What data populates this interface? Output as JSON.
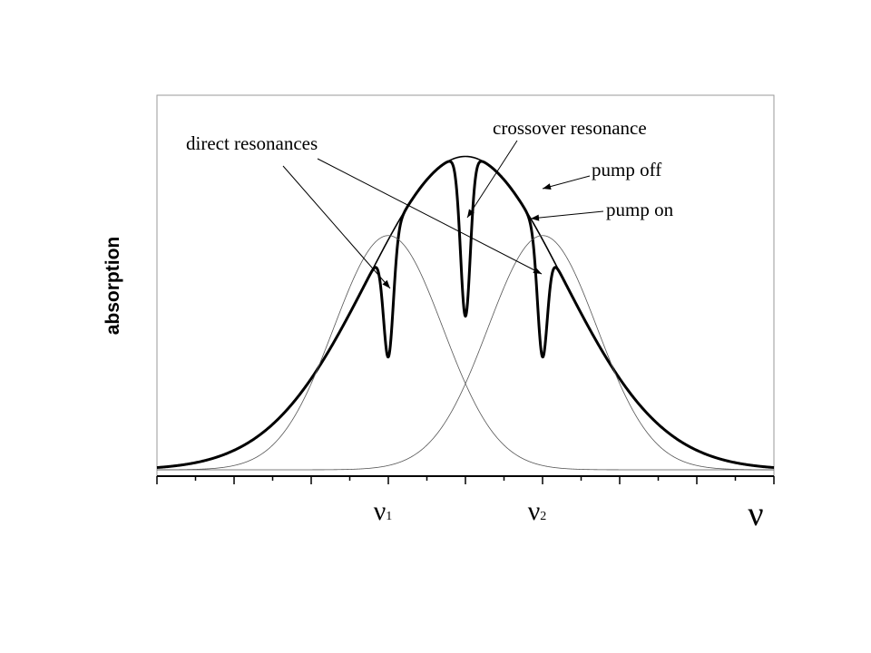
{
  "chart_data": {
    "type": "line",
    "title": "",
    "xlabel": "ν",
    "ylabel": "absorption",
    "xlim": [
      0,
      8
    ],
    "ylim": [
      0,
      1
    ],
    "grid": false,
    "legend": "none",
    "x_major_ticks": 9,
    "x_minor_ticks": 16,
    "tick_labels": [
      {
        "x": 3,
        "text": "ν",
        "sub": "1"
      },
      {
        "x": 5,
        "text": "ν",
        "sub": "2"
      }
    ],
    "resonances": {
      "nu1": 3,
      "nu2": 5,
      "crossover": 4
    },
    "series": [
      {
        "key": "pump_off",
        "style": "thin",
        "center": 4,
        "width": 1.8,
        "amplitude": 0.99
      },
      {
        "key": "pump_on",
        "style": "thick",
        "center": 4,
        "width": 1.8,
        "amplitude": 0.99,
        "dips": [
          {
            "x": 3,
            "depth": 0.51,
            "width": 0.09
          },
          {
            "x": 4,
            "depth": 0.51,
            "width": 0.09
          },
          {
            "x": 5,
            "depth": 0.51,
            "width": 0.09
          }
        ]
      },
      {
        "key": "component_1",
        "style": "hair",
        "center": 3,
        "width": 1.0,
        "amplitude": 0.74
      },
      {
        "key": "component_2",
        "style": "hair",
        "center": 5,
        "width": 1.0,
        "amplitude": 0.74
      }
    ],
    "annotations": [
      {
        "key": "direct",
        "text": "direct resonances",
        "targets": [
          [
            3.0,
            0.6
          ],
          [
            5.0,
            0.65
          ]
        ]
      },
      {
        "key": "crossover",
        "text": "crossover resonance",
        "targets": [
          [
            4.0,
            0.8
          ]
        ]
      },
      {
        "key": "pumpoff",
        "text": "pump off",
        "targets": [
          [
            5.05,
            0.92
          ]
        ]
      },
      {
        "key": "pumpon",
        "text": "pump on",
        "targets": [
          [
            4.9,
            0.83
          ]
        ]
      }
    ]
  }
}
